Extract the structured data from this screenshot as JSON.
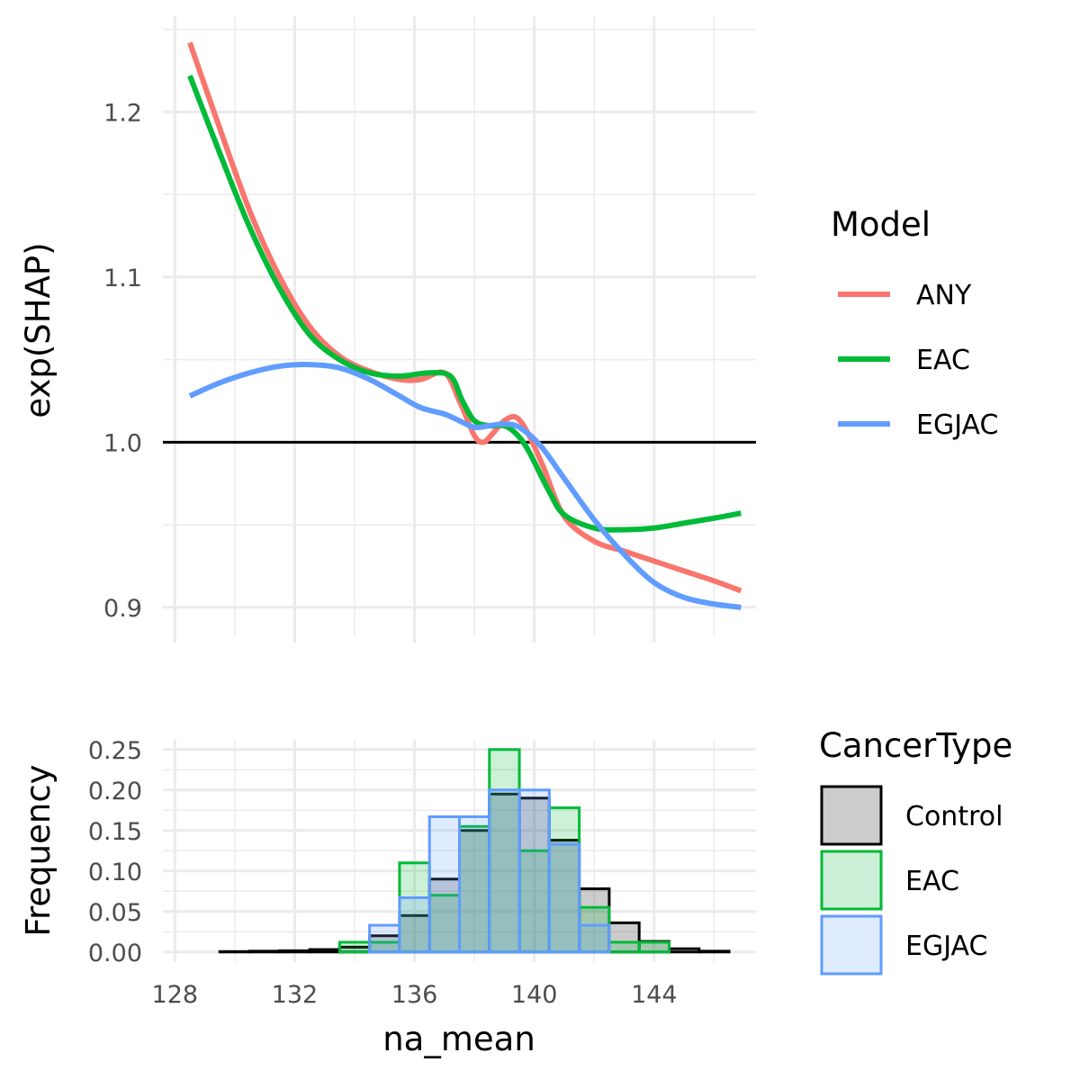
{
  "chart_data": [
    {
      "type": "line",
      "title": "",
      "xlabel": "",
      "ylabel": "exp(SHAP)",
      "xlim": [
        127.6,
        147.4
      ],
      "ylim": [
        0.883,
        1.258
      ],
      "x_ticks": [
        128,
        132,
        136,
        140,
        144
      ],
      "y_ticks": [
        0.9,
        1.0,
        1.1,
        1.2
      ],
      "y_tick_labels": [
        "0.9",
        "1.0",
        "1.1",
        "1.2"
      ],
      "reference_line": 1.0,
      "grid": true,
      "legend": {
        "title": "Model",
        "position": "right",
        "entries": [
          {
            "label": "ANY",
            "color": "#F8766D"
          },
          {
            "label": "EAC",
            "color": "#00BA38"
          },
          {
            "label": "EGJAC",
            "color": "#619CFF"
          }
        ]
      },
      "series": [
        {
          "name": "ANY",
          "color": "#F8766D",
          "x": [
            128.5,
            129.5,
            130.5,
            131.5,
            132.5,
            133.5,
            134.5,
            135.5,
            136.2,
            137.0,
            137.5,
            138.0,
            138.3,
            138.6,
            139.0,
            139.4,
            139.8,
            140.3,
            141.0,
            142.0,
            143.0,
            144.0,
            145.0,
            146.0,
            146.9
          ],
          "y": [
            1.242,
            1.19,
            1.14,
            1.1,
            1.07,
            1.052,
            1.043,
            1.038,
            1.038,
            1.042,
            1.025,
            1.004,
            1.0,
            1.005,
            1.013,
            1.015,
            1.005,
            0.985,
            0.955,
            0.94,
            0.934,
            0.928,
            0.922,
            0.916,
            0.91
          ]
        },
        {
          "name": "EAC",
          "color": "#00BA38",
          "x": [
            128.5,
            129.5,
            130.5,
            131.5,
            132.5,
            133.5,
            134.5,
            135.5,
            136.5,
            137.2,
            137.6,
            138.0,
            138.5,
            139.0,
            139.4,
            139.8,
            140.5,
            141.0,
            142.0,
            143.0,
            144.0,
            145.0,
            146.0,
            146.9
          ],
          "y": [
            1.222,
            1.175,
            1.13,
            1.093,
            1.065,
            1.05,
            1.042,
            1.04,
            1.042,
            1.04,
            1.025,
            1.013,
            1.01,
            1.01,
            1.005,
            0.995,
            0.97,
            0.956,
            0.948,
            0.947,
            0.948,
            0.951,
            0.954,
            0.957
          ]
        },
        {
          "name": "EGJAC",
          "color": "#619CFF",
          "x": [
            128.5,
            129.5,
            130.5,
            131.5,
            132.5,
            133.5,
            134.5,
            135.5,
            136.2,
            137.0,
            137.5,
            138.0,
            138.5,
            139.0,
            139.5,
            140.2,
            141.0,
            142.0,
            143.0,
            144.0,
            145.0,
            146.0,
            146.9
          ],
          "y": [
            1.028,
            1.036,
            1.042,
            1.046,
            1.047,
            1.045,
            1.038,
            1.028,
            1.021,
            1.017,
            1.013,
            1.009,
            1.01,
            1.011,
            1.009,
            0.998,
            0.978,
            0.953,
            0.932,
            0.915,
            0.906,
            0.902,
            0.9
          ]
        }
      ]
    },
    {
      "type": "bar",
      "title": "",
      "xlabel": "na_mean",
      "ylabel": "Frequency",
      "xlim": [
        127.6,
        147.4
      ],
      "ylim": [
        -0.0125,
        0.262
      ],
      "x_ticks": [
        128,
        132,
        136,
        140,
        144
      ],
      "x_tick_labels": [
        "128",
        "132",
        "136",
        "140",
        "144"
      ],
      "y_ticks": [
        0,
        0.05,
        0.1,
        0.15,
        0.2,
        0.25
      ],
      "y_tick_labels": [
        "0.00",
        "0.05",
        "0.10",
        "0.15",
        "0.20",
        "0.25"
      ],
      "grid": true,
      "bin_width": 1,
      "bins_start": [
        128.5,
        129.5,
        130.5,
        131.5,
        132.5,
        133.5,
        134.5,
        135.5,
        136.5,
        137.5,
        138.5,
        139.5,
        140.5,
        141.5,
        142.5,
        143.5,
        144.5,
        145.5
      ],
      "legend": {
        "title": "CancerType",
        "position": "right",
        "entries": [
          {
            "label": "Control",
            "stroke": "#000000",
            "fill": "#cccccc"
          },
          {
            "label": "EAC",
            "stroke": "#00BA38",
            "fill": "#ccefd7"
          },
          {
            "label": "EGJAC",
            "stroke": "#619CFF",
            "fill": "#dfebff"
          }
        ]
      },
      "series": [
        {
          "name": "Control",
          "stroke": "#000000",
          "fill": "#000000",
          "values": [
            0.0,
            0.0005,
            0.001,
            0.0015,
            0.003,
            0.006,
            0.02,
            0.045,
            0.09,
            0.15,
            0.195,
            0.19,
            0.138,
            0.078,
            0.036,
            0.013,
            0.004,
            0.001
          ]
        },
        {
          "name": "EAC",
          "stroke": "#00BA38",
          "fill": "#00BA38",
          "values": [
            0.0,
            0.0,
            0.0,
            0.0,
            0.0,
            0.012,
            0.012,
            0.11,
            0.07,
            0.155,
            0.25,
            0.125,
            0.178,
            0.055,
            0.012,
            0.012,
            0.0,
            0.0
          ]
        },
        {
          "name": "EGJAC",
          "stroke": "#619CFF",
          "fill": "#619CFF",
          "values": [
            0.0,
            0.0,
            0.0,
            0.0,
            0.0,
            0.0,
            0.033,
            0.067,
            0.167,
            0.167,
            0.2,
            0.2,
            0.133,
            0.033,
            0.0,
            0.0,
            0.0,
            0.0
          ]
        }
      ]
    }
  ]
}
